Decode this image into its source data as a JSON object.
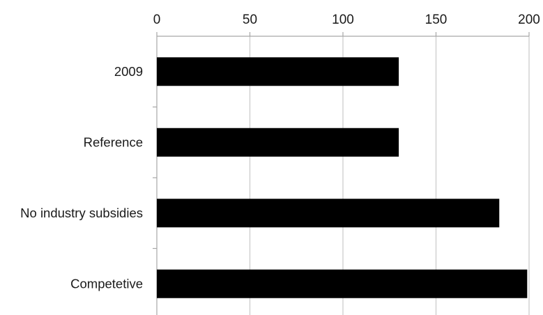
{
  "chart_data": {
    "type": "bar",
    "orientation": "horizontal",
    "categories": [
      "2009",
      "Reference",
      "No industry subsidies",
      "Competetive"
    ],
    "values": [
      130,
      130,
      184,
      199
    ],
    "xlim": [
      0,
      200
    ],
    "xticks": [
      0,
      50,
      100,
      150,
      200
    ],
    "x_axis_position": "top",
    "grid": true,
    "bar_color": "#000000",
    "grid_color": "#c8c8c8",
    "axis_color": "#a6a6a6"
  }
}
